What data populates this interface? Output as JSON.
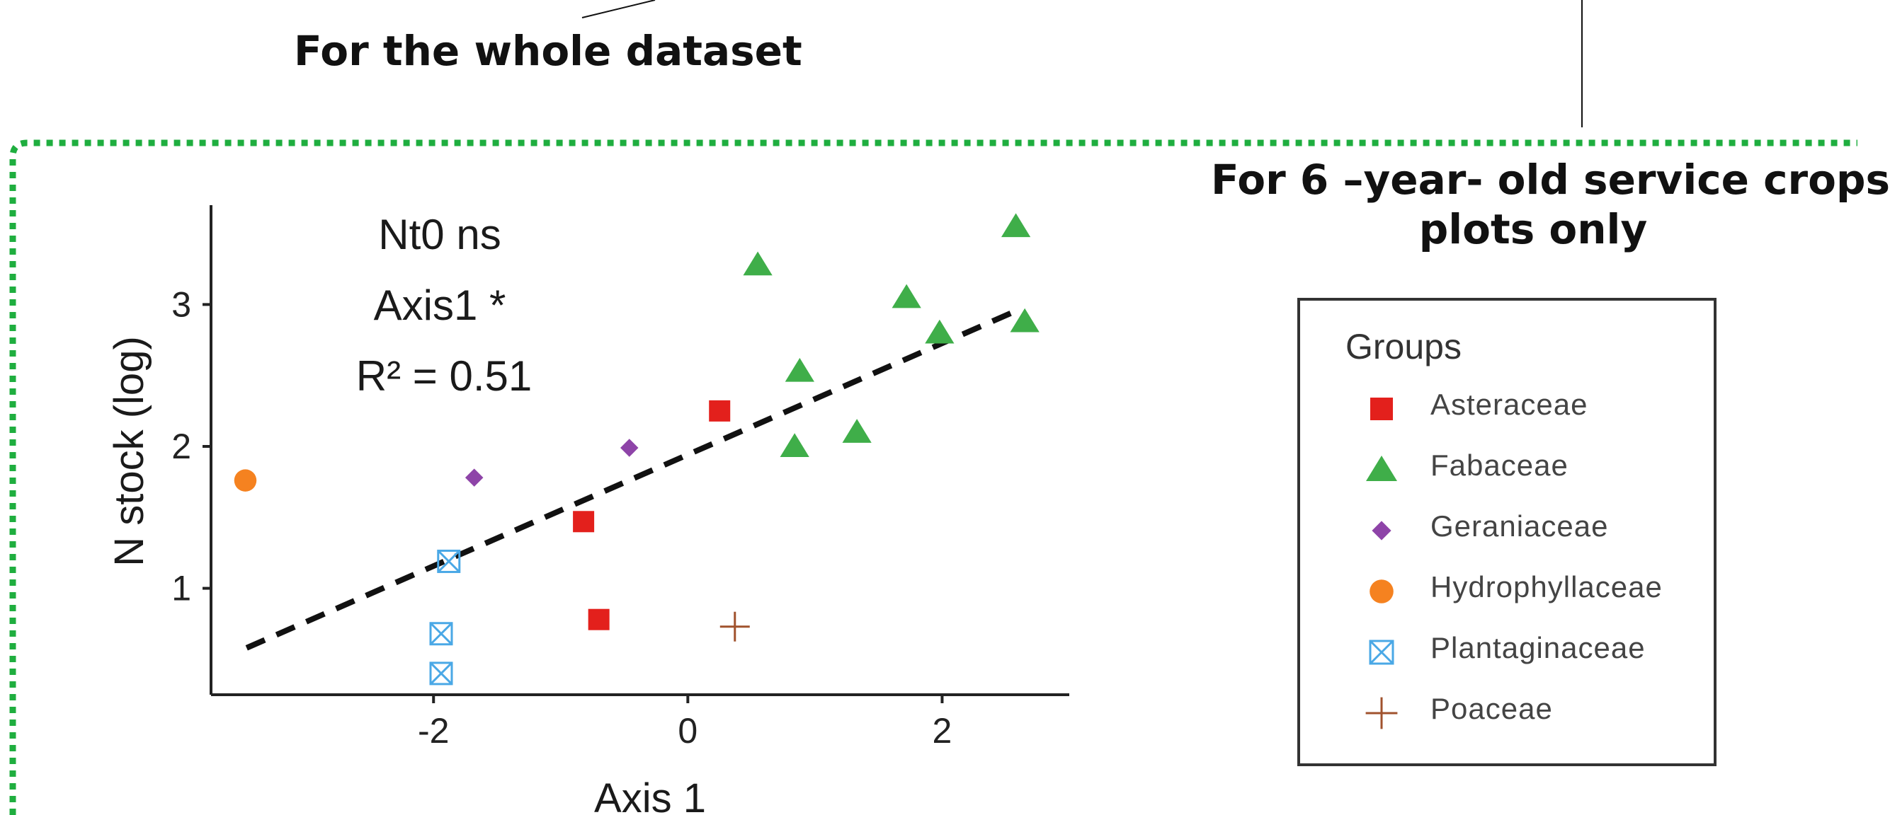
{
  "callouts": {
    "whole_dataset": "For the whole dataset",
    "six_year_line1": "For 6 –year- old service crops",
    "six_year_line2": "plots only"
  },
  "colors": {
    "frame": "#1fae3f",
    "Asteraceae": "#e3201c",
    "Fabaceae": "#3fae49",
    "Geraniaceae": "#8e44a8",
    "Hydrophyllaceae": "#f58220",
    "Plantaginaceae": "#4aa8e6",
    "Poaceae": "#a0522d"
  },
  "stats": {
    "line1": "Nt0 ns",
    "line2": "Axis1 *",
    "line3": "R² = 0.51"
  },
  "legend": {
    "title": "Groups",
    "items": [
      {
        "label": "Asteraceae",
        "shape": "square"
      },
      {
        "label": "Fabaceae",
        "shape": "triangle"
      },
      {
        "label": "Geraniaceae",
        "shape": "diamond"
      },
      {
        "label": "Hydrophyllaceae",
        "shape": "circle"
      },
      {
        "label": "Plantaginaceae",
        "shape": "boxed-x"
      },
      {
        "label": "Poaceae",
        "shape": "plus"
      }
    ]
  },
  "chart_data": {
    "type": "scatter",
    "xlabel": "Axis 1",
    "ylabel": "N stock (log)",
    "xlim": [
      -3.75,
      3.0
    ],
    "ylim": [
      0.25,
      3.7
    ],
    "x_ticks": [
      -2,
      0,
      2
    ],
    "x_tick_labels": [
      "-2",
      "0",
      "2"
    ],
    "y_ticks": [
      1,
      2,
      3
    ],
    "y_tick_labels": [
      "1",
      "2",
      "3"
    ],
    "grid": false,
    "legend_position": "right",
    "series": [
      {
        "name": "Asteraceae",
        "points": [
          {
            "x": 0.25,
            "y": 2.25
          },
          {
            "x": -0.82,
            "y": 1.47
          },
          {
            "x": -0.7,
            "y": 0.78
          }
        ]
      },
      {
        "name": "Fabaceae",
        "points": [
          {
            "x": 0.55,
            "y": 3.28
          },
          {
            "x": 2.58,
            "y": 3.55
          },
          {
            "x": 1.72,
            "y": 3.05
          },
          {
            "x": 2.65,
            "y": 2.88
          },
          {
            "x": 1.98,
            "y": 2.8
          },
          {
            "x": 0.88,
            "y": 2.53
          },
          {
            "x": 1.33,
            "y": 2.1
          },
          {
            "x": 0.84,
            "y": 2.0
          }
        ]
      },
      {
        "name": "Geraniaceae",
        "points": [
          {
            "x": -1.68,
            "y": 1.78
          },
          {
            "x": -0.46,
            "y": 1.99
          }
        ]
      },
      {
        "name": "Hydrophyllaceae",
        "points": [
          {
            "x": -3.48,
            "y": 1.76
          }
        ]
      },
      {
        "name": "Plantaginaceae",
        "points": [
          {
            "x": -1.88,
            "y": 1.19
          },
          {
            "x": -1.94,
            "y": 0.68
          },
          {
            "x": -1.94,
            "y": 0.4
          }
        ]
      },
      {
        "name": "Poaceae",
        "points": [
          {
            "x": 0.37,
            "y": 0.73
          }
        ]
      }
    ],
    "regression_line": {
      "x1": -3.47,
      "y1": 0.58,
      "x2": 2.62,
      "y2": 2.97,
      "style": "dashed"
    }
  }
}
